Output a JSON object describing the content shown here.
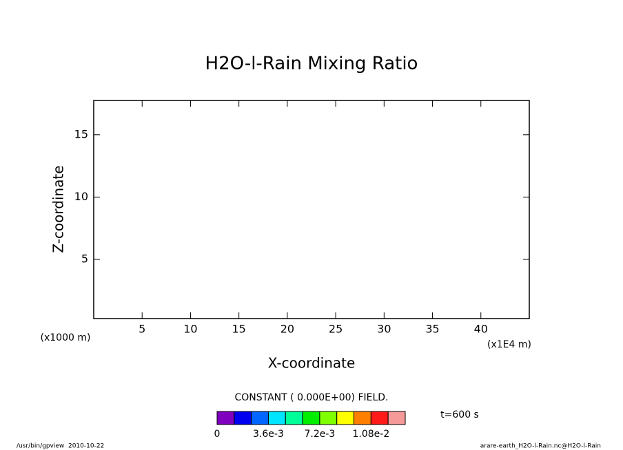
{
  "chart_data": {
    "type": "contour",
    "title": "H2O-l-Rain Mixing Ratio",
    "x_label": "X-coordinate",
    "y_label": "Z-coordinate",
    "x_unit": "(x1E4 m)",
    "y_unit": "(x1000 m)",
    "xlim": [
      0,
      45
    ],
    "xticks": [
      5,
      10,
      15,
      20,
      25,
      30,
      35,
      40
    ],
    "ylim": [
      0.25,
      17.75
    ],
    "yticks": [
      5,
      10,
      15
    ],
    "note": "CONSTANT ( 0.000E+00) FIELD.",
    "time": "t=600 s",
    "colorbar": {
      "lim": [
        0,
        0.0132
      ],
      "colors": [
        "#7f00bf",
        "#0000f0",
        "#0066ff",
        "#00e5ff",
        "#00ff99",
        "#00ee00",
        "#80ff00",
        "#ffff00",
        "#ff8000",
        "#ff1a1a",
        "#f59999"
      ],
      "ticks": [
        0,
        {
          "value": 0.0036,
          "label": "3.6e-3"
        },
        {
          "value": 0.0072,
          "label": "7.2e-3"
        },
        {
          "value": 0.0108,
          "label": "1.08e-2"
        }
      ]
    },
    "footer_left": "/usr/bin/gpview  2010-10-22",
    "footer_right": "arare-earth_H2O-l-Rain.nc@H2O-l-Rain"
  }
}
